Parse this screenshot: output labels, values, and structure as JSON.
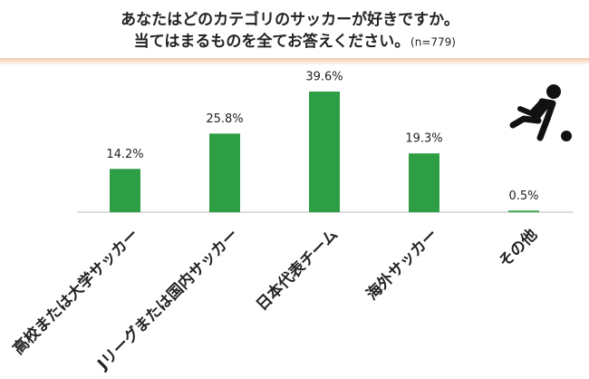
{
  "chart_data": {
    "type": "bar",
    "title": "あなたはどのカテゴリのサッカーが好きですか。",
    "subtitle": "当てはまるものを全てお答えください。",
    "note": "(n=779)",
    "categories": [
      "高校または大学サッカー",
      "Jリーグまたは国内サッカー",
      "日本代表チーム",
      "海外サッカー",
      "その他"
    ],
    "values": [
      14.2,
      25.8,
      39.6,
      19.3,
      0.5
    ],
    "value_labels": [
      "14.2%",
      "25.8%",
      "39.6%",
      "19.3%",
      "0.5%"
    ],
    "color": "#2e9e44"
  }
}
